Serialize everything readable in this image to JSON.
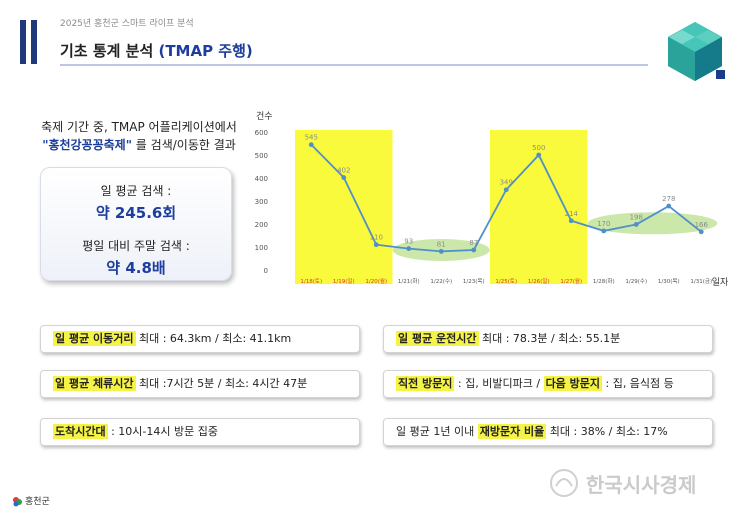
{
  "header": {
    "subtitle": "2025년 홍천군 스마트 라이프 분석",
    "title_main": "기초 통계 분석 ",
    "title_accent": "(TMAP 주행)"
  },
  "left": {
    "desc_line1": "축제 기간 중, TMAP 어플리케이션에서",
    "desc_quote": "\"홍천강꽁꽁축제\"",
    "desc_line2_rest": " 를 검색/이동한 결과",
    "stat1_label": "일 평균 검색 :",
    "stat1_value": "약 245.6회",
    "stat2_label": "평일 대비 주말 검색 :",
    "stat2_value": "약 4.8배"
  },
  "chart_data": {
    "type": "line",
    "ylabel": "건수",
    "xlabel": "일자",
    "ylim": [
      0,
      600
    ],
    "yticks": [
      "0",
      "100",
      "200",
      "300",
      "400",
      "500",
      "600"
    ],
    "categories": [
      "1/18(토)",
      "1/19(일)",
      "1/20(월)",
      "1/21(화)",
      "1/22(수)",
      "1/23(목)",
      "1/25(토)",
      "1/26(일)",
      "1/27(월)",
      "1/28(화)",
      "1/29(수)",
      "1/30(목)",
      "1/31(금)"
    ],
    "values": [
      545,
      402,
      110,
      93,
      81,
      87,
      349,
      500,
      214,
      170,
      198,
      278,
      166
    ],
    "highlighted_categories": [
      0,
      1,
      2,
      6,
      7,
      8
    ],
    "colors": {
      "line": "#4f8fca",
      "highlight": "#fafa3c",
      "ellipse": "#b9df8c",
      "label": "#8c8c8c",
      "xlabel_highlight": "#d23c2c"
    }
  },
  "info": {
    "b1_hl": "일 평균 이동거리",
    "b1_text": " 최대 : 64.3km / 최소: 41.1km",
    "b2_hl": "일 평균 운전시간",
    "b2_text": " 최대 : 78.3분 / 최소: 55.1분",
    "b3_hl": "일 평균 체류시간",
    "b3_text": " 최대 :7시간 5분 / 최소: 4시간 47분",
    "b4_hl1": "직전 방문지",
    "b4_mid": " : 집, 비발디파크 / ",
    "b4_hl2": "다음 방문지",
    "b4_text": " : 집, 음식점 등",
    "b5_hl": "도착시간대",
    "b5_text": " : 10시-14시 방문 집중",
    "b6_pre": "일 평균 1년 이내 ",
    "b6_hl": "재방문자 비율",
    "b6_text": " 최대 : 38% / 최소: 17%"
  },
  "footer": {
    "logo_text": "홍천군",
    "watermark_text": "한국시사경제"
  }
}
